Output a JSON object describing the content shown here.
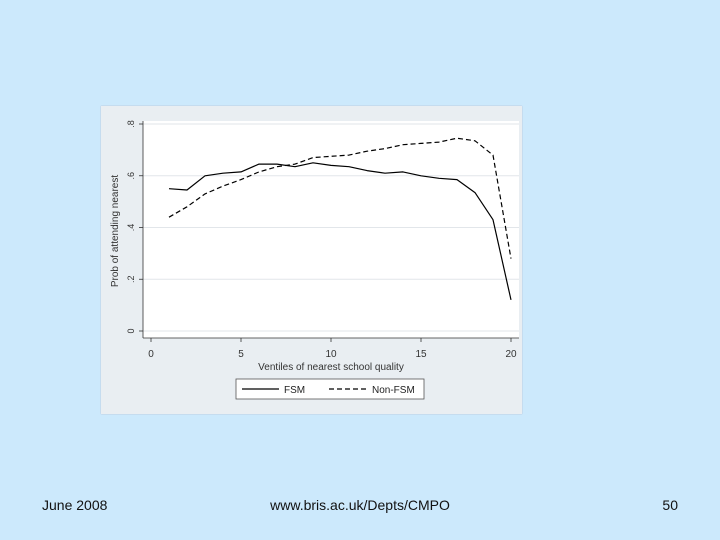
{
  "footer": {
    "date": "June 2008",
    "url": "www.bris.ac.uk/Depts/CMPO",
    "page_number": "50"
  },
  "chart_data": {
    "type": "line",
    "title": "",
    "xlabel": "Ventiles of nearest school quality",
    "ylabel": "Prob of attending nearest",
    "xlim": [
      0,
      20
    ],
    "ylim": [
      0,
      0.8
    ],
    "x_ticks": [
      0,
      5,
      10,
      15,
      20
    ],
    "y_ticks": [
      0,
      0.2,
      0.4,
      0.6,
      0.8
    ],
    "y_tick_labels": [
      "0",
      ".2",
      ".4",
      ".6",
      ".8"
    ],
    "grid": true,
    "legend_position": "bottom",
    "x": [
      1,
      2,
      3,
      4,
      5,
      6,
      7,
      8,
      9,
      10,
      11,
      12,
      13,
      14,
      15,
      16,
      17,
      18,
      19,
      20
    ],
    "series": [
      {
        "name": "FSM",
        "style": "solid",
        "values": [
          0.55,
          0.545,
          0.6,
          0.61,
          0.615,
          0.645,
          0.645,
          0.635,
          0.65,
          0.64,
          0.635,
          0.62,
          0.61,
          0.615,
          0.6,
          0.59,
          0.585,
          0.535,
          0.43,
          0.12
        ]
      },
      {
        "name": "Non-FSM",
        "style": "dashed",
        "values": [
          0.44,
          0.48,
          0.53,
          0.56,
          0.585,
          0.615,
          0.635,
          0.645,
          0.67,
          0.675,
          0.68,
          0.695,
          0.705,
          0.72,
          0.725,
          0.73,
          0.745,
          0.735,
          0.68,
          0.28
        ]
      }
    ]
  }
}
